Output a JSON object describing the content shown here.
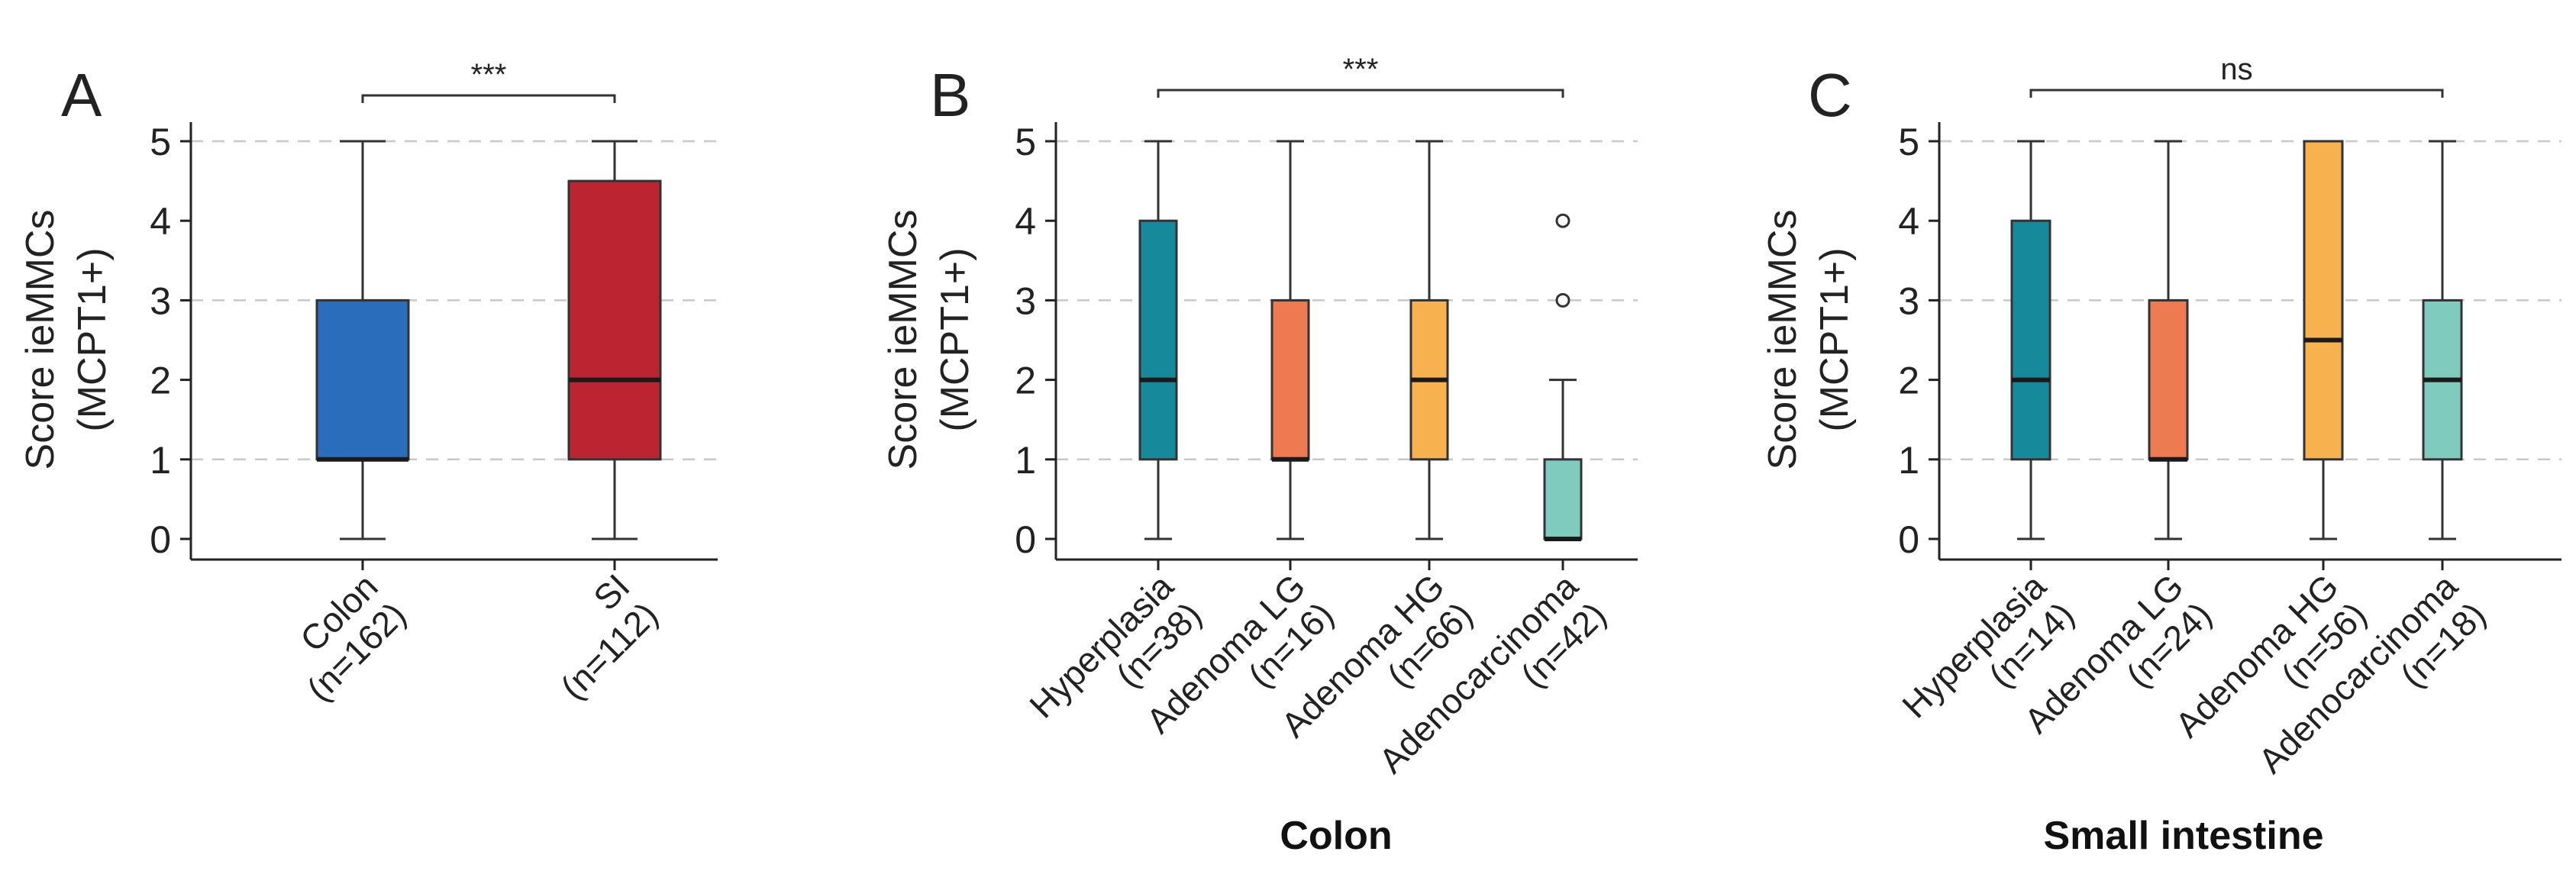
{
  "chart_data": [
    {
      "panel": "A",
      "type": "box",
      "ylabel_line1": "Score ieMMCs",
      "ylabel_line2": "(MCPT1+)",
      "ylim": [
        0,
        5
      ],
      "yticks": [
        0,
        1,
        2,
        3,
        4,
        5
      ],
      "grid_values": [
        1,
        3,
        5
      ],
      "group_title": "",
      "significance": {
        "text": "***",
        "from": 0,
        "to": 1
      },
      "categories": [
        {
          "line1": "Colon",
          "line2": "(n=162)",
          "color": "#2a6ebb",
          "min": 0,
          "q1": 1,
          "median": 1,
          "q3": 3,
          "max": 5,
          "outliers": []
        },
        {
          "line1": "SI",
          "line2": "(n=112)",
          "color": "#bd2431",
          "min": 0,
          "q1": 1,
          "median": 2,
          "q3": 4.5,
          "max": 5,
          "outliers": []
        }
      ]
    },
    {
      "panel": "B",
      "type": "box",
      "ylabel_line1": "Score ieMMCs",
      "ylabel_line2": "(MCPT1+)",
      "ylim": [
        0,
        5
      ],
      "yticks": [
        0,
        1,
        2,
        3,
        4,
        5
      ],
      "grid_values": [
        1,
        3,
        5
      ],
      "group_title": "Colon",
      "significance": {
        "text": "***",
        "from": 0,
        "to": 3
      },
      "categories": [
        {
          "line1": "Hyperplasia",
          "line2": "(n=38)",
          "color": "#16899b",
          "min": 0,
          "q1": 1,
          "median": 2,
          "q3": 4,
          "max": 5,
          "outliers": []
        },
        {
          "line1": "Adenoma LG",
          "line2": "(n=16)",
          "color": "#ee7a51",
          "min": 0,
          "q1": 1,
          "median": 1,
          "q3": 3,
          "max": 5,
          "outliers": []
        },
        {
          "line1": "Adenoma HG",
          "line2": "(n=66)",
          "color": "#f7b24f",
          "min": 0,
          "q1": 1,
          "median": 2,
          "q3": 3,
          "max": 5,
          "outliers": []
        },
        {
          "line1": "Adenocarcinoma",
          "line2": "(n=42)",
          "color": "#7fcbbd",
          "min": 0,
          "q1": 0,
          "median": 0,
          "q3": 1,
          "max": 2,
          "outliers": [
            3,
            4
          ]
        }
      ]
    },
    {
      "panel": "C",
      "type": "box",
      "ylabel_line1": "Score ieMMCs",
      "ylabel_line2": "(MCPT1+)",
      "ylim": [
        0,
        5
      ],
      "yticks": [
        0,
        1,
        2,
        3,
        4,
        5
      ],
      "grid_values": [
        1,
        3,
        5
      ],
      "group_title": "Small intestine",
      "significance": {
        "text": "ns",
        "from": 0,
        "to": 3
      },
      "categories": [
        {
          "line1": "Hyperplasia",
          "line2": "(n=14)",
          "color": "#16899b",
          "min": 0,
          "q1": 1,
          "median": 2,
          "q3": 4,
          "max": 5,
          "outliers": []
        },
        {
          "line1": "Adenoma LG",
          "line2": "(n=24)",
          "color": "#ee7a51",
          "min": 0,
          "q1": 1,
          "median": 1,
          "q3": 3,
          "max": 5,
          "outliers": []
        },
        {
          "line1": "Adenoma HG",
          "line2": "(n=56)",
          "color": "#f7b24f",
          "min": 0,
          "q1": 1,
          "median": 2.5,
          "q3": 5,
          "max": 5,
          "outliers": []
        },
        {
          "line1": "Adenocarcinoma",
          "line2": "(n=18)",
          "color": "#7fcbbd",
          "min": 0,
          "q1": 1,
          "median": 2,
          "q3": 3,
          "max": 5,
          "outliers": []
        }
      ]
    }
  ]
}
